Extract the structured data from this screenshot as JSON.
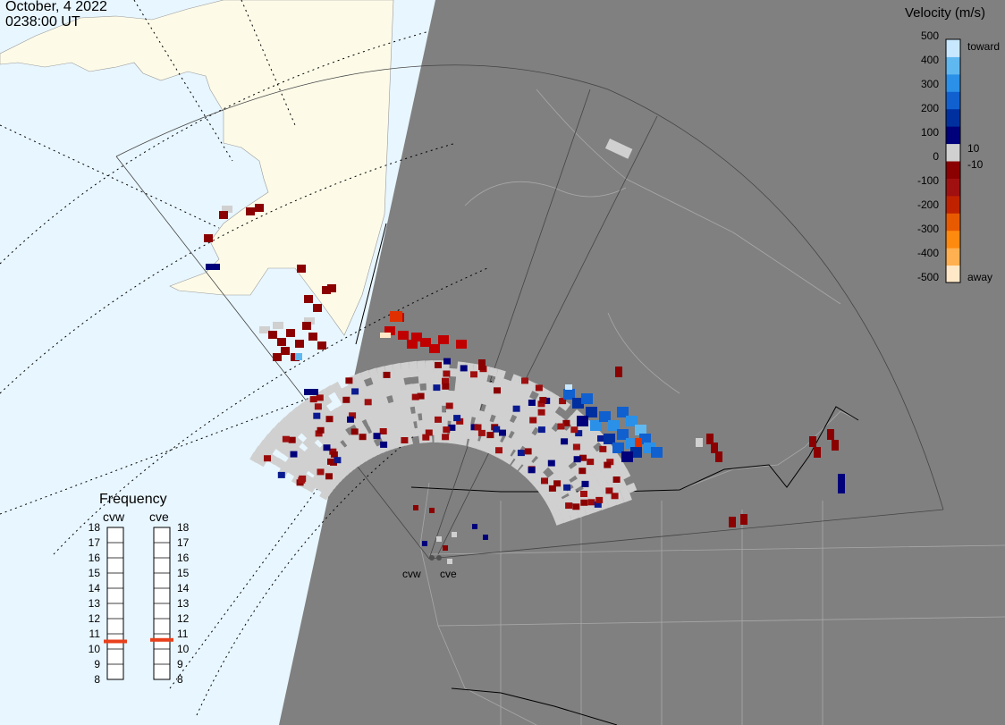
{
  "header": {
    "date": "October, 4 2022",
    "time": "0238:00 UT"
  },
  "colorbar": {
    "title": "Velocity (m/s)",
    "ticks": [
      "500",
      "400",
      "300",
      "200",
      "100",
      "10",
      "0",
      "-10",
      "-100",
      "-200",
      "-300",
      "-400",
      "-500"
    ],
    "toward_label": "toward",
    "away_label": "away",
    "colors": [
      "#ffe8c8",
      "#ffb050",
      "#ff8a10",
      "#e85a00",
      "#c02200",
      "#a01010",
      "#8b0000",
      "#d0d0d0",
      "#00007a",
      "#0030a0",
      "#1060d0",
      "#2a90e8",
      "#60b8f0",
      "#c8e8ff"
    ]
  },
  "frequency_panel": {
    "title": "Frequency",
    "radars": [
      {
        "name": "cvw",
        "frequency_mhz": 10.5
      },
      {
        "name": "cve",
        "frequency_mhz": 10.6
      }
    ],
    "scale": [
      "18",
      "17",
      "16",
      "15",
      "14",
      "13",
      "12",
      "11",
      "10",
      "9",
      "8"
    ],
    "marker_color": "#e8401c"
  },
  "map": {
    "ocean_color": "#e8f6ff",
    "land_day_color": "#fdfbe8",
    "night_color": "#808080",
    "scatter_color": "#d0d0d0",
    "sites": [
      {
        "name": "cvw"
      },
      {
        "name": "cve"
      }
    ]
  }
}
